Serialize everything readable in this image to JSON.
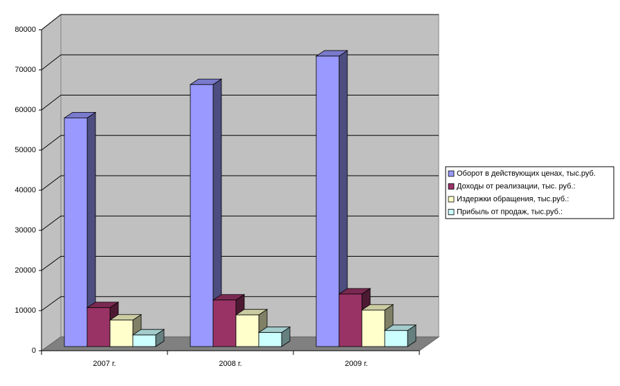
{
  "chart_data": {
    "type": "bar3d",
    "categories": [
      "2007 г.",
      "2008 г.",
      "2009 г."
    ],
    "series": [
      {
        "name": "Оборот в действующих ценах, тыс.руб.",
        "color": "#9999ff",
        "values": [
          57000,
          65300,
          72400
        ]
      },
      {
        "name": "Доходы от реализации, тыс. руб.:",
        "color": "#993366",
        "values": [
          9700,
          11600,
          13100
        ]
      },
      {
        "name": "Издержки обращения, тыс.руб.:",
        "color": "#ffffcc",
        "values": [
          6600,
          7900,
          9100
        ]
      },
      {
        "name": "Прибыль от продаж, тыс.руб.:",
        "color": "#ccffff",
        "values": [
          2900,
          3500,
          4000
        ]
      }
    ],
    "ylim": [
      0,
      80000
    ],
    "yticks": [
      0,
      10000,
      20000,
      30000,
      40000,
      50000,
      60000,
      70000,
      80000
    ],
    "grid": true,
    "legend": "right"
  }
}
